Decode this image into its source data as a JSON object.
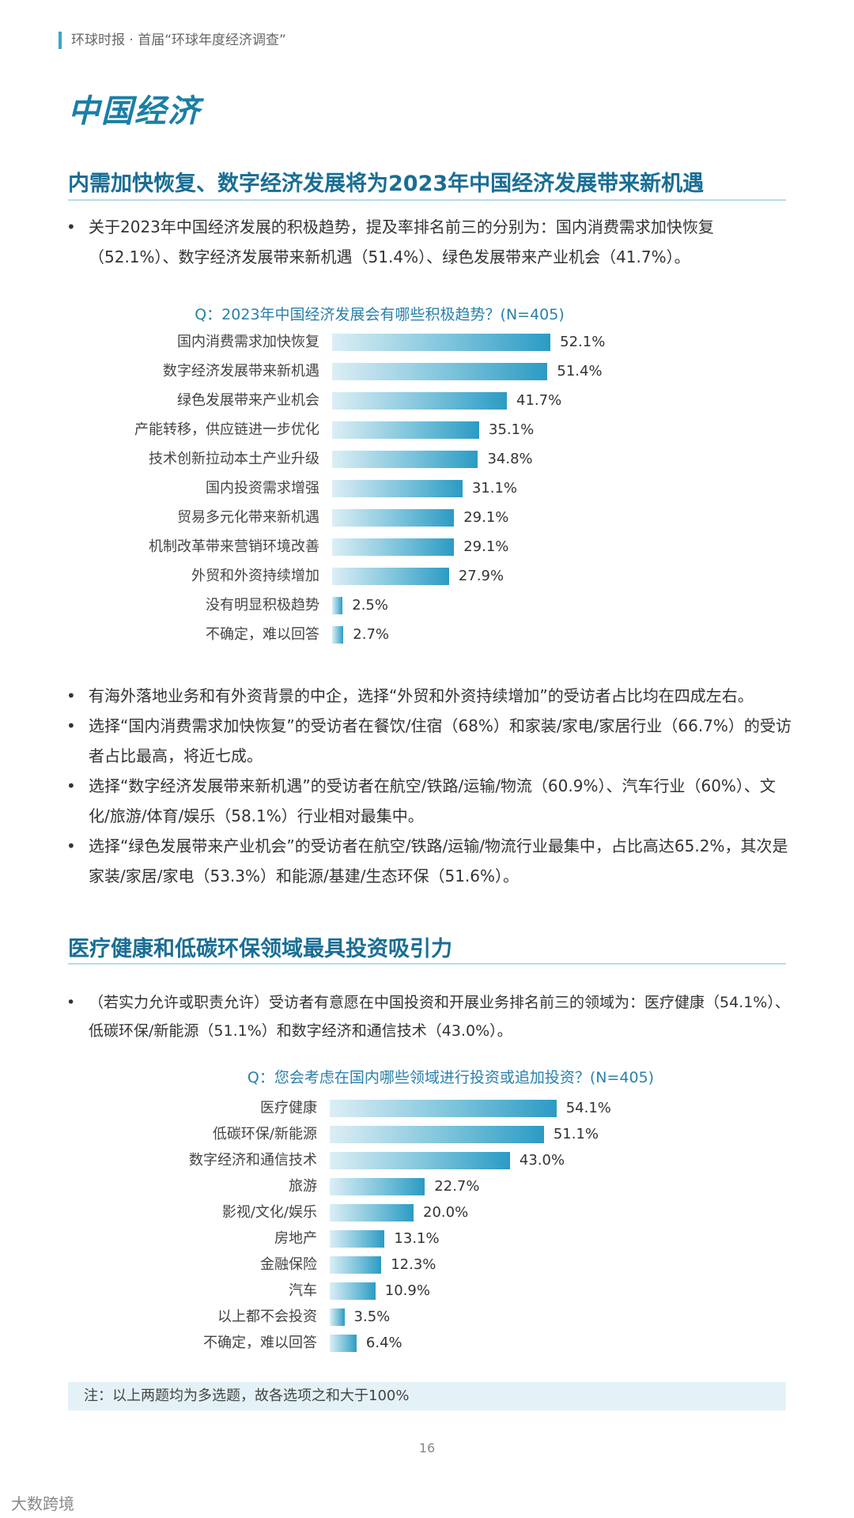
{
  "header": {
    "breadcrumb": "环球时报 · 首届“环球年度经济调查”",
    "section_title": "中国经济"
  },
  "section1": {
    "heading": "内需加快恢复、数字经济发展将为2023年中国经济发展带来新机遇",
    "intro": "关于2023年中国经济发展的积极趋势，提及率排名前三的分别为：国内消费需求加快恢复（52.1%）、数字经济发展带来新机遇（51.4%）、绿色发展带来产业机会（41.7%）。",
    "bullets": [
      "有海外落地业务和有外资背景的中企，选择“外贸和外资持续增加”的受访者占比均在四成左右。",
      "选择“国内消费需求加快恢复”的受访者在餐饮/住宿（68%）和家装/家电/家居行业（66.7%）的受访者占比最高，将近七成。",
      "选择“数字经济发展带来新机遇”的受访者在航空/铁路/运输/物流（60.9%）、汽车行业（60%）、文化/旅游/体育/娱乐（58.1%）行业相对最集中。",
      "选择“绿色发展带来产业机会”的受访者在航空/铁路/运输/物流行业最集中，占比高达65.2%，其次是家装/家居/家电（53.3%）和能源/基建/生态环保（51.6%）。"
    ]
  },
  "section2": {
    "heading": "医疗健康和低碳环保领域最具投资吸引力",
    "intro": "（若实力允许或职责允许）受访者有意愿在中国投资和开展业务排名前三的领域为：医疗健康（54.1%）、低碳环保/新能源（51.1%）和数字经济和通信技术（43.0%）。"
  },
  "chart_data": [
    {
      "type": "bar",
      "orientation": "horizontal",
      "title": "Q：2023年中国经济发展会有哪些积极趋势？(N=405)",
      "categories": [
        "国内消费需求加快恢复",
        "数字经济发展带来新机遇",
        "绿色发展带来产业机会",
        "产能转移，供应链进一步优化",
        "技术创新拉动本土产业升级",
        "国内投资需求增强",
        "贸易多元化带来新机遇",
        "机制改革带来营销环境改善",
        "外贸和外资持续增加",
        "没有明显积极趋势",
        "不确定，难以回答"
      ],
      "values": [
        52.1,
        51.4,
        41.7,
        35.1,
        34.8,
        31.1,
        29.1,
        29.1,
        27.9,
        2.5,
        2.7
      ],
      "value_labels": [
        "52.1%",
        "51.4%",
        "41.7%",
        "35.1%",
        "34.8%",
        "31.1%",
        "29.1%",
        "29.1%",
        "27.9%",
        "2.5%",
        "2.7%"
      ],
      "unit": "%",
      "grid": false
    },
    {
      "type": "bar",
      "orientation": "horizontal",
      "title": "Q：您会考虑在国内哪些领域进行投资或追加投资？(N=405)",
      "categories": [
        "医疗健康",
        "低碳环保/新能源",
        "数字经济和通信技术",
        "旅游",
        "影视/文化/娱乐",
        "房地产",
        "金融保险",
        "汽车",
        "以上都不会投资",
        "不确定，难以回答"
      ],
      "values": [
        54.1,
        51.1,
        43.0,
        22.7,
        20.0,
        13.1,
        12.3,
        10.9,
        3.5,
        6.4
      ],
      "value_labels": [
        "54.1%",
        "51.1%",
        "43.0%",
        "22.7%",
        "20.0%",
        "13.1%",
        "12.3%",
        "10.9%",
        "3.5%",
        "6.4%"
      ],
      "unit": "%",
      "grid": false
    }
  ],
  "note": "注：以上两题均为多选题，故各选项之和大于100%",
  "page_number": "16",
  "footer_brand": "大数跨境"
}
